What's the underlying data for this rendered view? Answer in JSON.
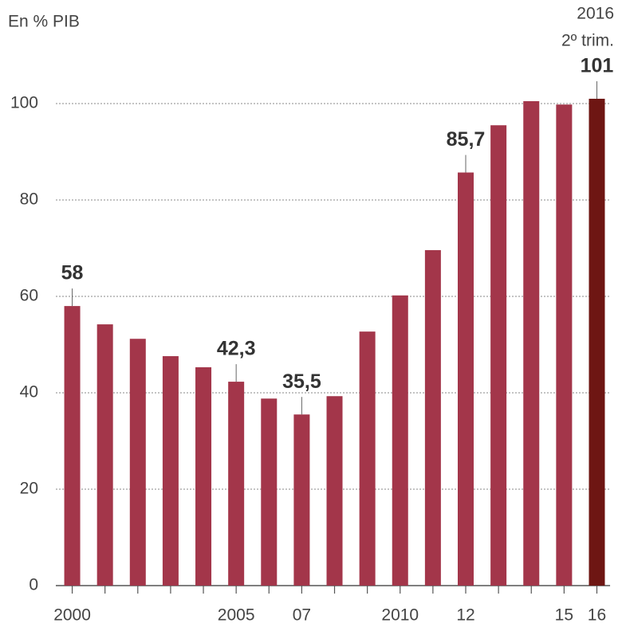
{
  "chart_data": {
    "type": "bar",
    "title": "En % PIB",
    "annotations": [
      "2016",
      "2º trim."
    ],
    "categories": [
      "2000",
      null,
      null,
      null,
      null,
      "2005",
      null,
      "07",
      null,
      null,
      "2010",
      null,
      "12",
      null,
      null,
      "15",
      "16"
    ],
    "values": [
      58,
      54.2,
      51.2,
      47.6,
      45.3,
      42.3,
      38.8,
      35.5,
      39.3,
      52.7,
      60.2,
      69.6,
      85.7,
      95.5,
      100.5,
      99.8,
      101
    ],
    "value_labels": [
      "58",
      null,
      null,
      null,
      null,
      "42,3",
      null,
      "35,5",
      null,
      null,
      null,
      null,
      "85,7",
      null,
      null,
      null,
      "101"
    ],
    "colors": [
      "#a3364a",
      "#a3364a",
      "#a3364a",
      "#a3364a",
      "#a3364a",
      "#a3364a",
      "#a3364a",
      "#a3364a",
      "#a3364a",
      "#a3364a",
      "#a3364a",
      "#a3364a",
      "#a3364a",
      "#a3364a",
      "#a3364a",
      "#a3364a",
      "#6e1613"
    ],
    "ylim": [
      0,
      100
    ],
    "yticks": [
      0,
      20,
      40,
      60,
      80,
      100
    ],
    "grid": true
  }
}
